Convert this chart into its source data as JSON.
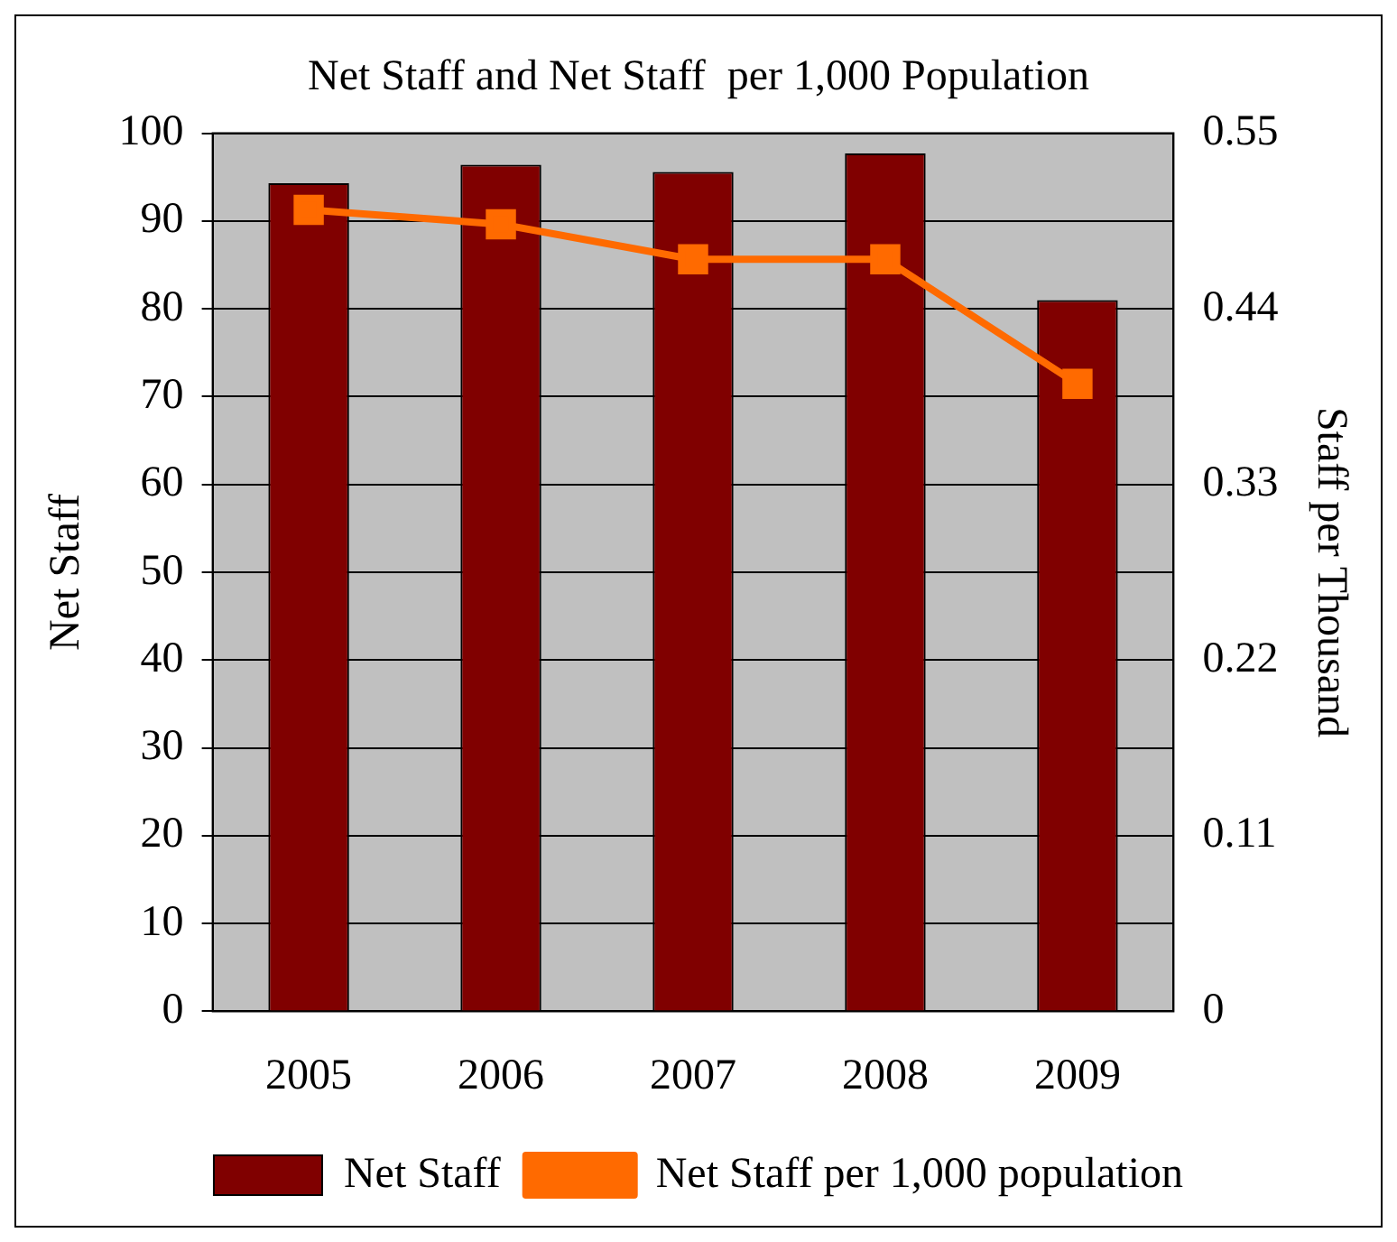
{
  "chart_data": {
    "type": "bar",
    "title": "Net Staff and Net Staff  per 1,000 Population",
    "ylabel": "Net Staff",
    "y2label": "Staff per Thousand",
    "categories": [
      "2005",
      "2006",
      "2007",
      "2008",
      "2009"
    ],
    "series": [
      {
        "name": "Net Staff",
        "color": "#800000",
        "values": [
          94.3,
          96.4,
          95.6,
          97.7,
          81
        ]
      },
      {
        "name": "Net Staff per 1,000 population",
        "type": "line",
        "axis": "y2",
        "color": "#ff6a00",
        "marker": "square",
        "values": [
          0.502,
          0.493,
          0.471,
          0.471,
          0.393
        ]
      }
    ],
    "ylim": [
      0,
      100
    ],
    "yticks": [
      0,
      10,
      20,
      30,
      40,
      50,
      60,
      70,
      80,
      90,
      100
    ],
    "y2lim": [
      0,
      0.55
    ],
    "y2ticks": [
      0,
      0.11,
      0.22,
      0.33,
      0.44,
      0.55
    ],
    "grid": "y",
    "legend": "bottom"
  }
}
